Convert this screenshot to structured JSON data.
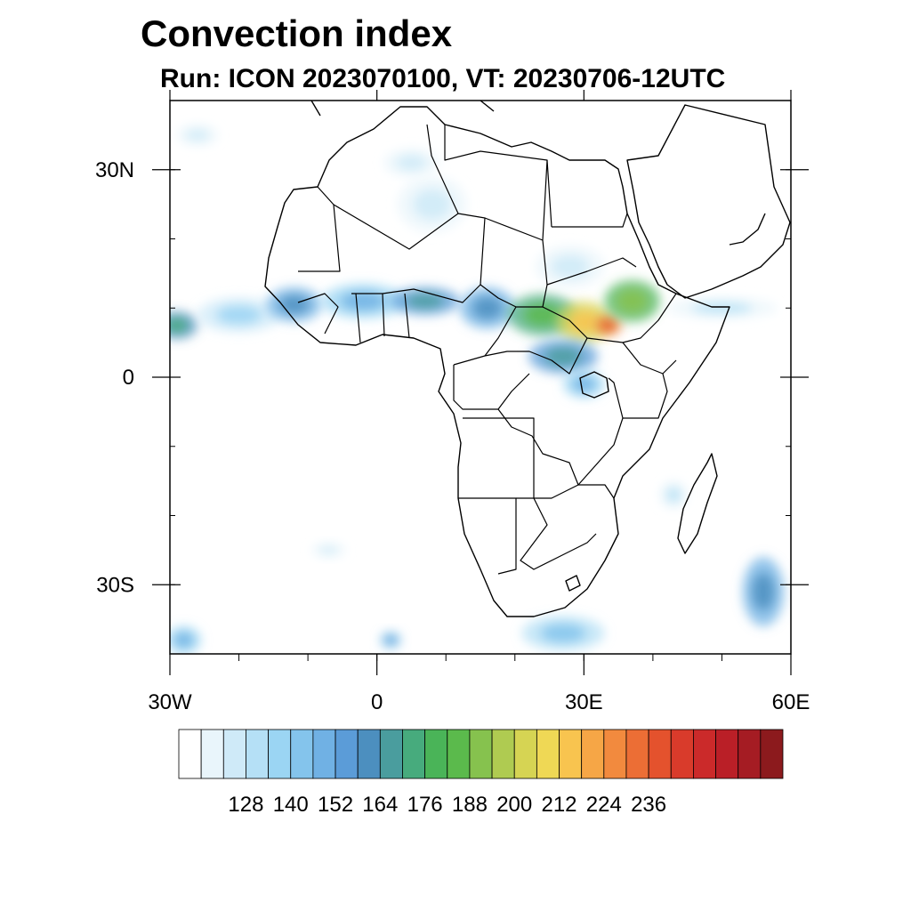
{
  "title": "Convection index",
  "subtitle": "Run: ICON 2023070100,  VT: 20230706-12UTC",
  "map": {
    "lon_range": [
      -30,
      60
    ],
    "lat_range": [
      -40,
      40
    ],
    "y_ticks": [
      {
        "lat": 30,
        "label": "30N"
      },
      {
        "lat": 0,
        "label": "0"
      },
      {
        "lat": -30,
        "label": "30S"
      }
    ],
    "x_ticks": [
      {
        "lon": -30,
        "label": "30W"
      },
      {
        "lon": 0,
        "label": "0"
      },
      {
        "lon": 30,
        "label": "30E"
      },
      {
        "lon": 60,
        "label": "60E"
      }
    ],
    "field_blobs": [
      {
        "lon": -26,
        "lat": 35,
        "rlon": 3,
        "rlat": 1.5,
        "level": 2
      },
      {
        "lon": -29,
        "lat": 7.5,
        "rlon": 3,
        "rlat": 2,
        "level": 10
      },
      {
        "lon": -20,
        "lat": 9,
        "rlon": 6,
        "rlat": 2.5,
        "level": 4
      },
      {
        "lon": -12,
        "lat": 10.5,
        "rlon": 4,
        "rlat": 2.5,
        "level": 8
      },
      {
        "lon": -2,
        "lat": 11,
        "rlon": 6,
        "rlat": 2.5,
        "level": 6
      },
      {
        "lon": 7,
        "lat": 11,
        "rlon": 5,
        "rlat": 2,
        "level": 9
      },
      {
        "lon": 16,
        "lat": 10,
        "rlon": 4,
        "rlat": 3,
        "level": 8
      },
      {
        "lon": 24,
        "lat": 9,
        "rlon": 5,
        "rlat": 3,
        "level": 12
      },
      {
        "lon": 30,
        "lat": 8,
        "rlon": 4,
        "rlat": 3,
        "level": 17
      },
      {
        "lon": 33.5,
        "lat": 7.5,
        "rlon": 2,
        "rlat": 1.5,
        "level": 21
      },
      {
        "lon": 37,
        "lat": 11,
        "rlon": 4,
        "rlat": 3,
        "level": 13
      },
      {
        "lon": 27,
        "lat": 3,
        "rlon": 5,
        "rlat": 2.5,
        "level": 9
      },
      {
        "lon": 30,
        "lat": -1,
        "rlon": 3,
        "rlat": 2,
        "level": 6
      },
      {
        "lon": 8,
        "lat": 25,
        "rlon": 5,
        "rlat": 4,
        "level": 2
      },
      {
        "lon": 5,
        "lat": 31,
        "rlon": 4,
        "rlat": 2,
        "level": 2
      },
      {
        "lon": 28,
        "lat": 16,
        "rlon": 5,
        "rlat": 3,
        "level": 2
      },
      {
        "lon": 50,
        "lat": 10,
        "rlon": 8,
        "rlat": 1.5,
        "level": 3
      },
      {
        "lon": 56,
        "lat": -31,
        "rlon": 3,
        "rlat": 5,
        "level": 8
      },
      {
        "lon": 27,
        "lat": -37,
        "rlon": 6,
        "rlat": 2.5,
        "level": 5
      },
      {
        "lon": -28,
        "lat": -38,
        "rlon": 2.5,
        "rlat": 2,
        "level": 6
      },
      {
        "lon": 2,
        "lat": -38,
        "rlon": 1.5,
        "rlat": 1.2,
        "level": 7
      },
      {
        "lon": -7,
        "lat": -25,
        "rlon": 2.5,
        "rlat": 1,
        "level": 2
      },
      {
        "lon": 43,
        "lat": -17,
        "rlon": 2,
        "rlat": 2,
        "level": 3
      }
    ]
  },
  "colorbar": {
    "colors": [
      "#ffffff",
      "#e9f5fb",
      "#cfeaf8",
      "#b5e0f6",
      "#9bd5f3",
      "#84c4ec",
      "#70b1e4",
      "#5b9cd8",
      "#4c8fbf",
      "#4a9d9e",
      "#47ab7d",
      "#4ab458",
      "#5bba4c",
      "#86c24e",
      "#afcb51",
      "#d6d453",
      "#efd855",
      "#f8c44f",
      "#f6a646",
      "#f28a3e",
      "#ec6e35",
      "#e4522d",
      "#d93b2b",
      "#cb2a2a",
      "#ba1f27",
      "#a51c23",
      "#8c1a1d"
    ],
    "labels": [
      "128",
      "140",
      "152",
      "164",
      "176",
      "188",
      "200",
      "212",
      "224",
      "236"
    ]
  }
}
